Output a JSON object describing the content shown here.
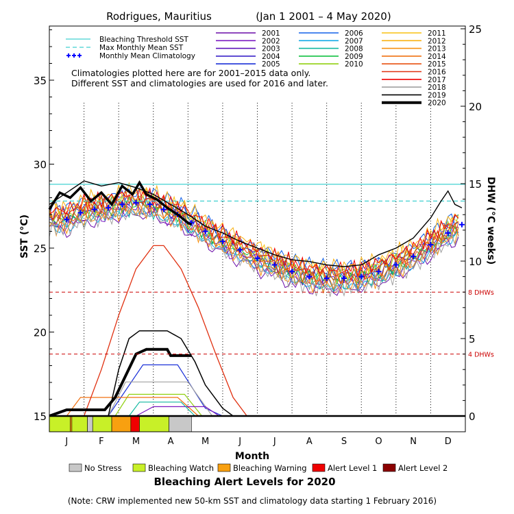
{
  "chart_data": {
    "type": "line",
    "title": "Rodrigues, Mauritius",
    "date_range": "(Jan 1 2001 – 4 May 2020)",
    "xlabel": "Month",
    "ylabel_left": "SST (°C)",
    "ylabel_right": "DHW (°C weeks)",
    "sst_ylim": [
      15,
      38
    ],
    "dhw_ylim": [
      0,
      25
    ],
    "sst_ticks": [
      15,
      20,
      25,
      30,
      35
    ],
    "dhw_ticks": [
      0,
      5,
      10,
      15,
      20,
      25
    ],
    "months": [
      "J",
      "F",
      "M",
      "A",
      "M",
      "J",
      "J",
      "A",
      "S",
      "O",
      "N",
      "D"
    ],
    "grid_vertical_dotted": true,
    "legend_lines": [
      {
        "label": "Bleaching Threshold SST",
        "color": "#40d0d0",
        "style": "solid"
      },
      {
        "label": "Max Monthly Mean SST",
        "color": "#40d0d0",
        "style": "dashed"
      },
      {
        "label": "Monthly Mean Climatology",
        "color": "#0000ff",
        "style": "plus"
      }
    ],
    "note_lines": [
      "Climatologies plotted here are for 2001–2015 data only.",
      "Different SST and climatologies are used for 2016 and later."
    ],
    "year_legend": [
      {
        "year": "2001",
        "color": "#6a0aa8"
      },
      {
        "year": "2002",
        "color": "#7a18c0"
      },
      {
        "year": "2003",
        "color": "#5a10b8"
      },
      {
        "year": "2004",
        "color": "#3a22c8"
      },
      {
        "year": "2005",
        "color": "#1a30d8"
      },
      {
        "year": "2006",
        "color": "#1060e8"
      },
      {
        "year": "2007",
        "color": "#10a8e8"
      },
      {
        "year": "2008",
        "color": "#10b8a0"
      },
      {
        "year": "2009",
        "color": "#10c040"
      },
      {
        "year": "2010",
        "color": "#90d010"
      },
      {
        "year": "2011",
        "color": "#f8c010"
      },
      {
        "year": "2012",
        "color": "#f8b010"
      },
      {
        "year": "2013",
        "color": "#f89010"
      },
      {
        "year": "2014",
        "color": "#f07010"
      },
      {
        "year": "2015",
        "color": "#e85010"
      },
      {
        "year": "2016",
        "color": "#e03010"
      },
      {
        "year": "2017",
        "color": "#f00000"
      },
      {
        "year": "2018",
        "color": "#a0a0a0"
      },
      {
        "year": "2019",
        "color": "#000000"
      },
      {
        "year": "2020",
        "color": "#000000",
        "bold": true
      }
    ],
    "bleaching_threshold_sst": 28.8,
    "max_monthly_mean_sst": 27.8,
    "dhw_reference_lines": [
      {
        "value": 8,
        "label": "8 DHWs",
        "color": "#cc0000"
      },
      {
        "value": 4,
        "label": "4 DHWs",
        "color": "#cc0000"
      }
    ],
    "monthly_mean_climatology": [
      {
        "x": 1.0,
        "y": 26.7
      },
      {
        "x": 1.4,
        "y": 27.1
      },
      {
        "x": 1.8,
        "y": 27.3
      },
      {
        "x": 2.2,
        "y": 27.4
      },
      {
        "x": 2.6,
        "y": 27.6
      },
      {
        "x": 3.0,
        "y": 27.7
      },
      {
        "x": 3.4,
        "y": 27.6
      },
      {
        "x": 3.8,
        "y": 27.3
      },
      {
        "x": 4.2,
        "y": 27.0
      },
      {
        "x": 4.6,
        "y": 26.5
      },
      {
        "x": 5.0,
        "y": 26.0
      },
      {
        "x": 5.5,
        "y": 25.4
      },
      {
        "x": 6.0,
        "y": 24.9
      },
      {
        "x": 6.5,
        "y": 24.4
      },
      {
        "x": 7.0,
        "y": 24.0
      },
      {
        "x": 7.5,
        "y": 23.6
      },
      {
        "x": 8.0,
        "y": 23.3
      },
      {
        "x": 8.5,
        "y": 23.2
      },
      {
        "x": 9.0,
        "y": 23.2
      },
      {
        "x": 9.5,
        "y": 23.3
      },
      {
        "x": 10.0,
        "y": 23.6
      },
      {
        "x": 10.5,
        "y": 24.0
      },
      {
        "x": 11.0,
        "y": 24.5
      },
      {
        "x": 11.5,
        "y": 25.2
      },
      {
        "x": 12.0,
        "y": 25.9
      },
      {
        "x": 12.4,
        "y": 26.4
      }
    ],
    "sst_2020": [
      {
        "x": 0.5,
        "y": 27.3
      },
      {
        "x": 0.8,
        "y": 28.3
      },
      {
        "x": 1.1,
        "y": 28.0
      },
      {
        "x": 1.4,
        "y": 28.6
      },
      {
        "x": 1.7,
        "y": 27.8
      },
      {
        "x": 2.0,
        "y": 28.3
      },
      {
        "x": 2.3,
        "y": 27.6
      },
      {
        "x": 2.6,
        "y": 28.7
      },
      {
        "x": 2.9,
        "y": 28.2
      },
      {
        "x": 3.1,
        "y": 28.9
      },
      {
        "x": 3.3,
        "y": 28.2
      },
      {
        "x": 3.6,
        "y": 27.9
      },
      {
        "x": 3.9,
        "y": 27.4
      },
      {
        "x": 4.2,
        "y": 27.0
      },
      {
        "x": 4.5,
        "y": 26.5
      },
      {
        "x": 4.6,
        "y": 26.4
      }
    ],
    "sst_2019": [
      {
        "x": 0.5,
        "y": 27.6
      },
      {
        "x": 1.0,
        "y": 28.3
      },
      {
        "x": 1.5,
        "y": 29.0
      },
      {
        "x": 2.0,
        "y": 28.7
      },
      {
        "x": 2.5,
        "y": 28.9
      },
      {
        "x": 3.0,
        "y": 28.6
      },
      {
        "x": 3.5,
        "y": 28.2
      },
      {
        "x": 4.0,
        "y": 27.6
      },
      {
        "x": 4.5,
        "y": 27.0
      },
      {
        "x": 5.0,
        "y": 26.3
      },
      {
        "x": 5.5,
        "y": 25.9
      },
      {
        "x": 6.0,
        "y": 25.4
      },
      {
        "x": 6.5,
        "y": 25.0
      },
      {
        "x": 7.0,
        "y": 24.6
      },
      {
        "x": 7.5,
        "y": 24.3
      },
      {
        "x": 8.0,
        "y": 24.2
      },
      {
        "x": 8.5,
        "y": 24.0
      },
      {
        "x": 9.0,
        "y": 23.9
      },
      {
        "x": 9.5,
        "y": 24.0
      },
      {
        "x": 10.0,
        "y": 24.6
      },
      {
        "x": 10.5,
        "y": 25.0
      },
      {
        "x": 11.0,
        "y": 25.6
      },
      {
        "x": 11.5,
        "y": 26.8
      },
      {
        "x": 11.8,
        "y": 27.8
      },
      {
        "x": 12.0,
        "y": 28.4
      },
      {
        "x": 12.2,
        "y": 27.6
      },
      {
        "x": 12.4,
        "y": 27.4
      }
    ],
    "dhw_2020": [
      {
        "x": 0.5,
        "y": 0
      },
      {
        "x": 1.0,
        "y": 0.4
      },
      {
        "x": 1.5,
        "y": 0.4
      },
      {
        "x": 2.1,
        "y": 0.4
      },
      {
        "x": 2.4,
        "y": 1.2
      },
      {
        "x": 2.7,
        "y": 2.6
      },
      {
        "x": 3.0,
        "y": 4.0
      },
      {
        "x": 3.3,
        "y": 4.3
      },
      {
        "x": 3.9,
        "y": 4.3
      },
      {
        "x": 4.0,
        "y": 3.9
      },
      {
        "x": 4.6,
        "y": 3.9
      }
    ],
    "dhw_2019": [
      {
        "x": 2.2,
        "y": 0
      },
      {
        "x": 2.5,
        "y": 3.0
      },
      {
        "x": 2.8,
        "y": 5.0
      },
      {
        "x": 3.1,
        "y": 5.5
      },
      {
        "x": 3.9,
        "y": 5.5
      },
      {
        "x": 4.3,
        "y": 5.0
      },
      {
        "x": 4.7,
        "y": 3.5
      },
      {
        "x": 5.0,
        "y": 2.0
      },
      {
        "x": 5.5,
        "y": 0.5
      },
      {
        "x": 5.8,
        "y": 0
      }
    ],
    "dhw_2016": [
      {
        "x": 1.5,
        "y": 0
      },
      {
        "x": 2.0,
        "y": 3.0
      },
      {
        "x": 2.5,
        "y": 6.5
      },
      {
        "x": 3.0,
        "y": 9.5
      },
      {
        "x": 3.5,
        "y": 11.0
      },
      {
        "x": 3.8,
        "y": 11.0
      },
      {
        "x": 4.3,
        "y": 9.5
      },
      {
        "x": 4.8,
        "y": 7.0
      },
      {
        "x": 5.3,
        "y": 4.0
      },
      {
        "x": 5.8,
        "y": 1.2
      },
      {
        "x": 6.2,
        "y": 0
      }
    ],
    "dhw_small": [
      {
        "color": "#1a30d8",
        "points": [
          {
            "x": 2.2,
            "y": 0
          },
          {
            "x": 3.2,
            "y": 3.3
          },
          {
            "x": 4.2,
            "y": 3.3
          },
          {
            "x": 5.0,
            "y": 0.5
          },
          {
            "x": 5.5,
            "y": 0
          }
        ]
      },
      {
        "color": "#a0a0a0",
        "points": [
          {
            "x": 2.2,
            "y": 0
          },
          {
            "x": 2.7,
            "y": 2.2
          },
          {
            "x": 4.5,
            "y": 2.2
          },
          {
            "x": 5.2,
            "y": 0
          }
        ]
      },
      {
        "color": "#90d010",
        "points": [
          {
            "x": 2.4,
            "y": 0
          },
          {
            "x": 2.8,
            "y": 1.4
          },
          {
            "x": 4.4,
            "y": 1.4
          },
          {
            "x": 4.9,
            "y": 0
          }
        ]
      },
      {
        "color": "#f07010",
        "points": [
          {
            "x": 1.0,
            "y": 0
          },
          {
            "x": 1.4,
            "y": 1.2
          },
          {
            "x": 4.2,
            "y": 1.2
          },
          {
            "x": 4.8,
            "y": 0
          }
        ]
      },
      {
        "color": "#7a18c0",
        "points": [
          {
            "x": 3.0,
            "y": 0
          },
          {
            "x": 3.5,
            "y": 0.6
          },
          {
            "x": 5.0,
            "y": 0.6
          },
          {
            "x": 5.4,
            "y": 0
          }
        ]
      },
      {
        "color": "#10b8a0",
        "points": [
          {
            "x": 2.8,
            "y": 0
          },
          {
            "x": 3.1,
            "y": 0.9
          },
          {
            "x": 4.3,
            "y": 0.9
          },
          {
            "x": 4.7,
            "y": 0
          }
        ]
      }
    ],
    "alert_bar_2020": [
      {
        "x0": 0.5,
        "x1": 1.1,
        "level": "Bleaching Watch"
      },
      {
        "x0": 1.1,
        "x1": 1.15,
        "level": "Bleaching Warning"
      },
      {
        "x0": 1.15,
        "x1": 1.6,
        "level": "Bleaching Watch"
      },
      {
        "x0": 1.6,
        "x1": 1.75,
        "level": "No Stress"
      },
      {
        "x0": 1.75,
        "x1": 2.3,
        "level": "Bleaching Watch"
      },
      {
        "x0": 2.3,
        "x1": 2.85,
        "level": "Bleaching Warning"
      },
      {
        "x0": 2.85,
        "x1": 3.1,
        "level": "Alert Level 1"
      },
      {
        "x0": 3.1,
        "x1": 3.95,
        "level": "Bleaching Watch"
      },
      {
        "x0": 3.95,
        "x1": 4.6,
        "level": "No Stress"
      }
    ],
    "alert_legend": [
      {
        "label": "No Stress",
        "color": "#c8c8c8"
      },
      {
        "label": "Bleaching Watch",
        "color": "#c8f028"
      },
      {
        "label": "Bleaching Warning",
        "color": "#f8a010"
      },
      {
        "label": "Alert Level 1",
        "color": "#f00000"
      },
      {
        "label": "Alert Level 2",
        "color": "#8b0000"
      }
    ],
    "alert_title": "Bleaching Alert Levels for 2020",
    "footnote": "(Note: CRW implemented new 50-km SST and climatology data starting 1 February 2016)"
  }
}
